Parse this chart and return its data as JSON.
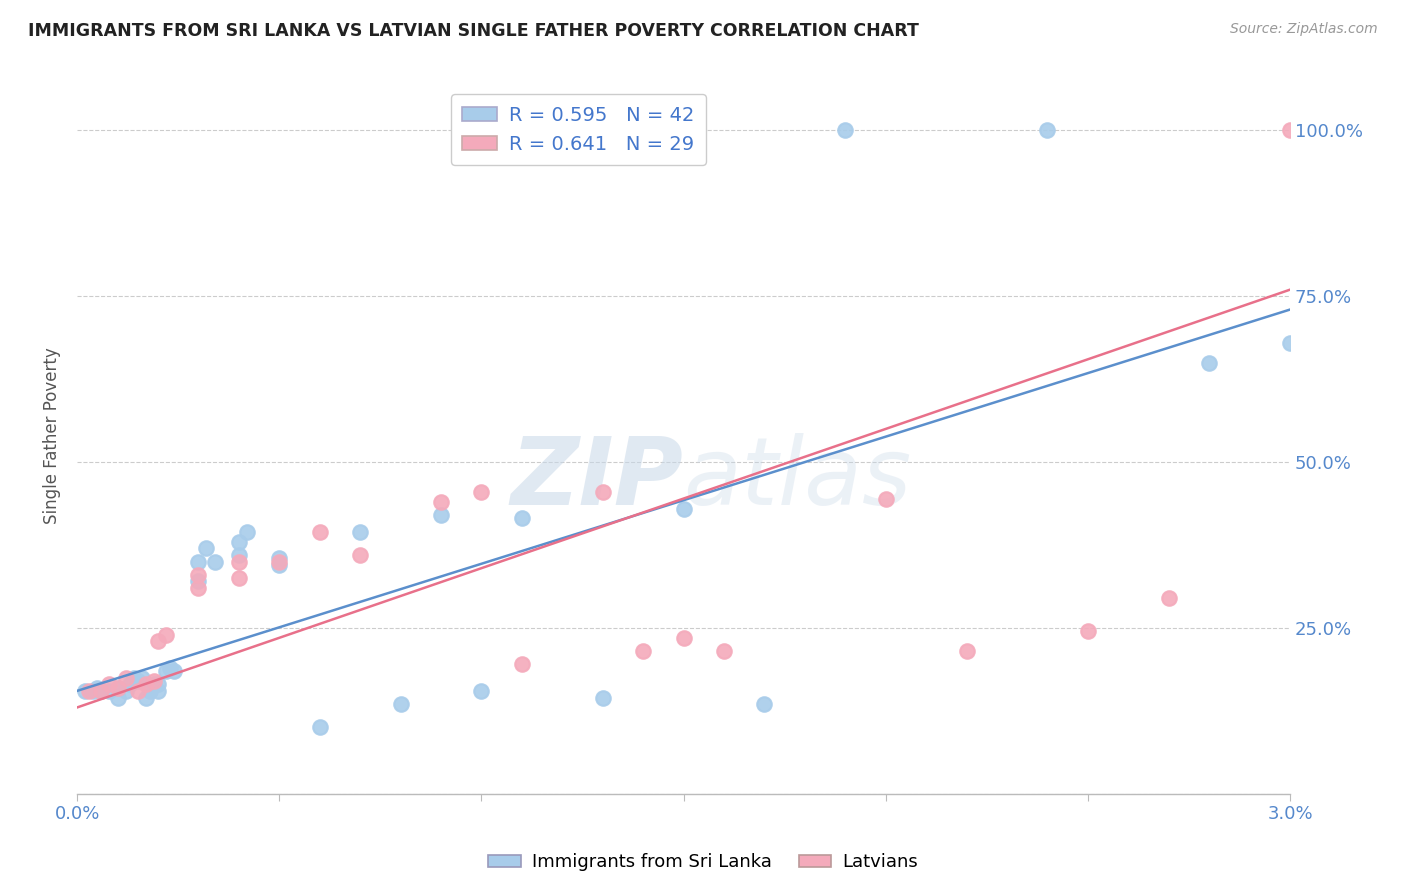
{
  "title": "IMMIGRANTS FROM SRI LANKA VS LATVIAN SINGLE FATHER POVERTY CORRELATION CHART",
  "source": "Source: ZipAtlas.com",
  "ylabel": "Single Father Poverty",
  "y_ticks": [
    0.0,
    0.25,
    0.5,
    0.75,
    1.0
  ],
  "y_tick_labels": [
    "",
    "25.0%",
    "50.0%",
    "75.0%",
    "100.0%"
  ],
  "blue_R": 0.595,
  "blue_N": 42,
  "pink_R": 0.641,
  "pink_N": 29,
  "blue_label": "Immigrants from Sri Lanka",
  "pink_label": "Latvians",
  "blue_color": "#A8CCEA",
  "pink_color": "#F4AABB",
  "blue_line_color": "#5B8FCC",
  "pink_line_color": "#E8708A",
  "watermark_color": "#C8D8E8",
  "background_color": "#FFFFFF",
  "xlim": [
    0.0,
    0.03
  ],
  "ylim": [
    0.0,
    1.08
  ],
  "blue_x": [
    0.0002,
    0.0004,
    0.0005,
    0.0006,
    0.0008,
    0.001,
    0.001,
    0.0012,
    0.0013,
    0.0014,
    0.0015,
    0.0016,
    0.0017,
    0.0018,
    0.0019,
    0.002,
    0.002,
    0.0022,
    0.0023,
    0.0024,
    0.003,
    0.003,
    0.0032,
    0.0034,
    0.004,
    0.004,
    0.0042,
    0.005,
    0.005,
    0.006,
    0.007,
    0.008,
    0.009,
    0.01,
    0.011,
    0.013,
    0.015,
    0.017,
    0.019,
    0.024,
    0.028,
    0.03
  ],
  "blue_y": [
    0.155,
    0.155,
    0.16,
    0.155,
    0.155,
    0.16,
    0.145,
    0.155,
    0.165,
    0.175,
    0.17,
    0.175,
    0.145,
    0.155,
    0.165,
    0.155,
    0.165,
    0.185,
    0.19,
    0.185,
    0.32,
    0.35,
    0.37,
    0.35,
    0.36,
    0.38,
    0.395,
    0.345,
    0.355,
    0.1,
    0.395,
    0.135,
    0.42,
    0.155,
    0.415,
    0.145,
    0.43,
    0.135,
    1.0,
    1.0,
    0.65,
    0.68
  ],
  "pink_x": [
    0.0003,
    0.0006,
    0.0008,
    0.001,
    0.0012,
    0.0015,
    0.0017,
    0.0019,
    0.002,
    0.0022,
    0.003,
    0.003,
    0.004,
    0.004,
    0.005,
    0.006,
    0.007,
    0.009,
    0.01,
    0.011,
    0.013,
    0.014,
    0.015,
    0.016,
    0.02,
    0.022,
    0.025,
    0.027,
    0.03
  ],
  "pink_y": [
    0.155,
    0.155,
    0.165,
    0.16,
    0.175,
    0.155,
    0.165,
    0.17,
    0.23,
    0.24,
    0.31,
    0.33,
    0.325,
    0.35,
    0.35,
    0.395,
    0.36,
    0.44,
    0.455,
    0.195,
    0.455,
    0.215,
    0.235,
    0.215,
    0.445,
    0.215,
    0.245,
    0.295,
    1.0
  ]
}
